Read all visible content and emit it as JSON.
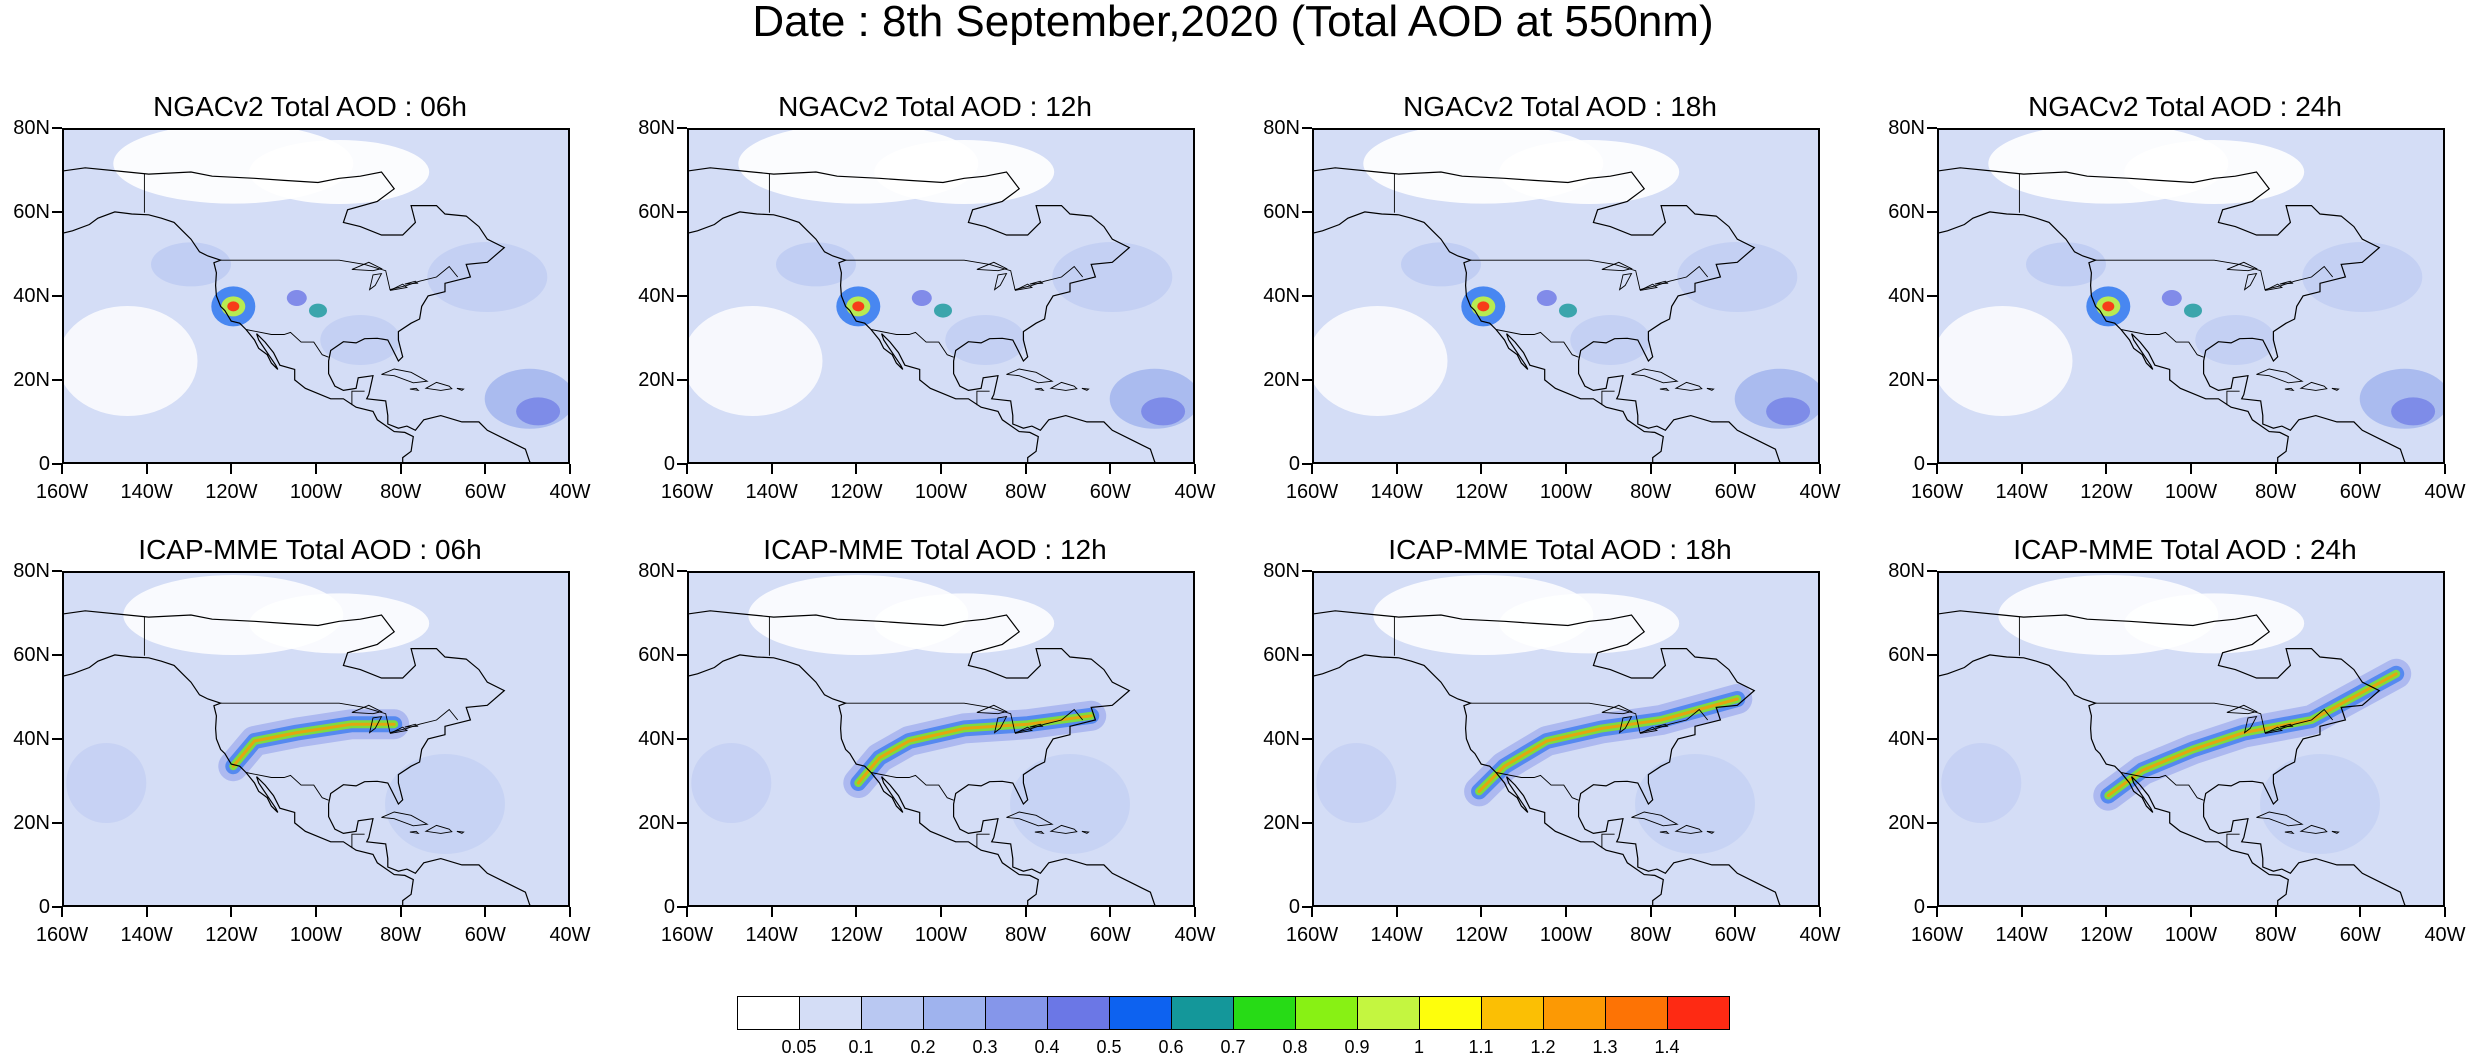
{
  "title": "Date : 8th September,2020 (Total AOD at 550nm)",
  "lat_labels": [
    "80N",
    "60N",
    "40N",
    "20N",
    "0"
  ],
  "lon_labels": [
    "160W",
    "140W",
    "120W",
    "100W",
    "80W",
    "60W",
    "40W"
  ],
  "panels": [
    {
      "title": "NGACv2 Total AOD : 06h",
      "model": "NGACv2",
      "hour": "06h"
    },
    {
      "title": "NGACv2 Total AOD : 12h",
      "model": "NGACv2",
      "hour": "12h"
    },
    {
      "title": "NGACv2 Total AOD : 18h",
      "model": "NGACv2",
      "hour": "18h"
    },
    {
      "title": "NGACv2 Total AOD : 24h",
      "model": "NGACv2",
      "hour": "24h"
    },
    {
      "title": "ICAP-MME Total AOD : 06h",
      "model": "ICAP-MME",
      "hour": "06h"
    },
    {
      "title": "ICAP-MME Total AOD : 12h",
      "model": "ICAP-MME",
      "hour": "12h"
    },
    {
      "title": "ICAP-MME Total AOD : 18h",
      "model": "ICAP-MME",
      "hour": "18h"
    },
    {
      "title": "ICAP-MME Total AOD : 24h",
      "model": "ICAP-MME",
      "hour": "24h"
    }
  ],
  "colorbar": {
    "labels": [
      "0.05",
      "0.1",
      "0.2",
      "0.3",
      "0.4",
      "0.5",
      "0.6",
      "0.7",
      "0.8",
      "0.9",
      "1",
      "1.1",
      "1.2",
      "1.3",
      "1.4"
    ],
    "colors": [
      "#ffffff",
      "#d4ddf6",
      "#b9c8f2",
      "#9fb3ee",
      "#8596ea",
      "#6b77e6",
      "#0d62f0",
      "#14979a",
      "#27db16",
      "#88f114",
      "#c4f640",
      "#fefe0c",
      "#fbbf04",
      "#fc9904",
      "#fd7305",
      "#fe2a13"
    ]
  }
}
